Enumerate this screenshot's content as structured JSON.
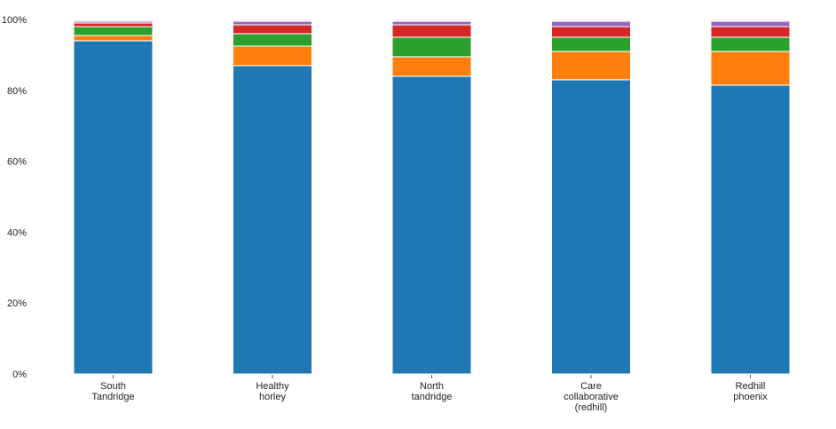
{
  "chart_data": {
    "type": "bar",
    "stacked": true,
    "percent": true,
    "categories": [
      [
        "South",
        "Tandridge"
      ],
      [
        "Healthy",
        "horley"
      ],
      [
        "North",
        "tandridge"
      ],
      [
        "Care",
        "collaborative",
        "(redhill)"
      ],
      [
        "Redhill",
        "phoenix"
      ]
    ],
    "series": [
      {
        "color": "#1f77b4",
        "values": [
          94.0,
          87.0,
          84.0,
          83.0,
          81.5
        ]
      },
      {
        "color": "#ff7f0e",
        "values": [
          1.5,
          5.5,
          5.5,
          8.0,
          9.5
        ]
      },
      {
        "color": "#2ca02c",
        "values": [
          2.5,
          3.5,
          5.5,
          4.0,
          4.0
        ]
      },
      {
        "color": "#d62728",
        "values": [
          1.0,
          2.5,
          3.5,
          3.0,
          3.0
        ]
      },
      {
        "color": "#9467bd",
        "values": [
          0.5,
          1.0,
          1.0,
          1.5,
          1.5
        ]
      },
      {
        "color": "#8c564b",
        "values": [
          0.2,
          0.2,
          0.2,
          0.2,
          0.2
        ]
      },
      {
        "color": "#e377c2",
        "values": [
          0.3,
          0.3,
          0.3,
          0.3,
          0.3
        ]
      }
    ],
    "ylim": [
      0,
      100
    ],
    "yticks": [
      0,
      20,
      40,
      60,
      80,
      100
    ],
    "ytick_labels": [
      "0%",
      "20%",
      "40%",
      "60%",
      "80%",
      "100%"
    ],
    "grid": false,
    "legend": "none"
  }
}
